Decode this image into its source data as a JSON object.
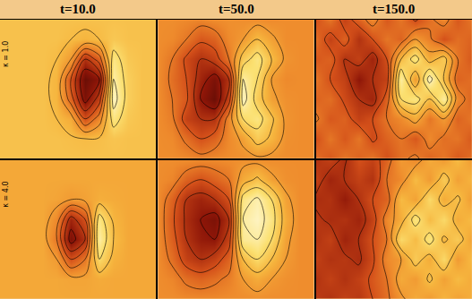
{
  "chart_data": {
    "type": "contour",
    "columns": [
      "t=10.0",
      "t=50.0",
      "t=150.0"
    ],
    "rows": [
      "κ = 1.0",
      "κ = 4.0"
    ],
    "zlim": [
      0,
      1
    ],
    "tick_labels": false,
    "cells": [
      [
        [
          [
            0.72,
            0.72,
            0.72,
            0.72,
            0.72,
            0.72,
            0.72,
            0.72,
            0.72,
            0.72,
            0.72,
            0.72
          ],
          [
            0.72,
            0.72,
            0.72,
            0.72,
            0.72,
            0.7,
            0.68,
            0.7,
            0.74,
            0.72,
            0.72,
            0.72
          ],
          [
            0.72,
            0.72,
            0.72,
            0.72,
            0.7,
            0.6,
            0.3,
            0.45,
            0.85,
            0.74,
            0.72,
            0.72
          ],
          [
            0.72,
            0.72,
            0.72,
            0.72,
            0.68,
            0.4,
            0.1,
            0.2,
            0.9,
            0.76,
            0.72,
            0.72
          ],
          [
            0.72,
            0.72,
            0.72,
            0.72,
            0.68,
            0.45,
            0.15,
            0.35,
            0.95,
            0.76,
            0.72,
            0.72
          ],
          [
            0.72,
            0.72,
            0.72,
            0.72,
            0.7,
            0.65,
            0.4,
            0.55,
            0.85,
            0.74,
            0.72,
            0.72
          ],
          [
            0.72,
            0.72,
            0.72,
            0.72,
            0.72,
            0.71,
            0.7,
            0.71,
            0.73,
            0.72,
            0.72,
            0.72
          ],
          [
            0.72,
            0.72,
            0.72,
            0.72,
            0.72,
            0.72,
            0.72,
            0.72,
            0.72,
            0.72,
            0.72,
            0.72
          ]
        ],
        [
          [
            0.56,
            0.56,
            0.55,
            0.54,
            0.56,
            0.57,
            0.56,
            0.56,
            0.55,
            0.56,
            0.56,
            0.56
          ],
          [
            0.56,
            0.55,
            0.5,
            0.42,
            0.45,
            0.55,
            0.6,
            0.7,
            0.62,
            0.56,
            0.56,
            0.56
          ],
          [
            0.56,
            0.5,
            0.38,
            0.3,
            0.35,
            0.5,
            0.75,
            0.85,
            0.7,
            0.58,
            0.56,
            0.56
          ],
          [
            0.56,
            0.48,
            0.4,
            0.25,
            0.15,
            0.3,
            0.9,
            0.8,
            0.6,
            0.55,
            0.56,
            0.56
          ],
          [
            0.56,
            0.5,
            0.42,
            0.2,
            0.1,
            0.35,
            0.95,
            0.75,
            0.62,
            0.57,
            0.56,
            0.56
          ],
          [
            0.56,
            0.52,
            0.35,
            0.3,
            0.3,
            0.55,
            0.8,
            0.85,
            0.72,
            0.58,
            0.56,
            0.56
          ],
          [
            0.56,
            0.55,
            0.48,
            0.4,
            0.45,
            0.55,
            0.62,
            0.75,
            0.68,
            0.57,
            0.56,
            0.56
          ],
          [
            0.56,
            0.56,
            0.55,
            0.53,
            0.55,
            0.56,
            0.57,
            0.58,
            0.57,
            0.56,
            0.56,
            0.56
          ]
        ],
        [
          [
            0.4,
            0.5,
            0.35,
            0.45,
            0.55,
            0.42,
            0.5,
            0.38,
            0.48,
            0.55,
            0.42,
            0.5
          ],
          [
            0.48,
            0.35,
            0.45,
            0.3,
            0.4,
            0.5,
            0.45,
            0.6,
            0.52,
            0.4,
            0.48,
            0.45
          ],
          [
            0.42,
            0.45,
            0.3,
            0.35,
            0.25,
            0.4,
            0.7,
            0.85,
            0.65,
            0.75,
            0.5,
            0.42
          ],
          [
            0.5,
            0.4,
            0.35,
            0.2,
            0.3,
            0.35,
            0.9,
            0.6,
            0.95,
            0.7,
            0.45,
            0.48
          ],
          [
            0.45,
            0.48,
            0.38,
            0.3,
            0.25,
            0.45,
            0.8,
            0.85,
            0.7,
            0.9,
            0.55,
            0.45
          ],
          [
            0.52,
            0.42,
            0.45,
            0.35,
            0.4,
            0.5,
            0.55,
            0.65,
            0.5,
            0.6,
            0.45,
            0.5
          ],
          [
            0.4,
            0.5,
            0.42,
            0.5,
            0.38,
            0.45,
            0.5,
            0.42,
            0.55,
            0.48,
            0.5,
            0.42
          ],
          [
            0.48,
            0.42,
            0.5,
            0.45,
            0.5,
            0.4,
            0.48,
            0.52,
            0.45,
            0.5,
            0.42,
            0.48
          ]
        ]
      ],
      [
        [
          [
            0.64,
            0.64,
            0.64,
            0.64,
            0.64,
            0.64,
            0.64,
            0.64,
            0.64,
            0.64,
            0.64,
            0.64
          ],
          [
            0.64,
            0.64,
            0.64,
            0.64,
            0.64,
            0.64,
            0.64,
            0.64,
            0.64,
            0.64,
            0.64,
            0.64
          ],
          [
            0.64,
            0.64,
            0.64,
            0.64,
            0.63,
            0.6,
            0.62,
            0.66,
            0.65,
            0.64,
            0.64,
            0.64
          ],
          [
            0.64,
            0.64,
            0.64,
            0.64,
            0.55,
            0.25,
            0.4,
            0.85,
            0.68,
            0.64,
            0.64,
            0.64
          ],
          [
            0.64,
            0.64,
            0.64,
            0.64,
            0.5,
            0.15,
            0.3,
            0.9,
            0.7,
            0.64,
            0.64,
            0.64
          ],
          [
            0.64,
            0.64,
            0.64,
            0.64,
            0.6,
            0.4,
            0.5,
            0.8,
            0.67,
            0.64,
            0.64,
            0.64
          ],
          [
            0.64,
            0.64,
            0.64,
            0.64,
            0.64,
            0.63,
            0.63,
            0.65,
            0.64,
            0.64,
            0.64,
            0.64
          ],
          [
            0.64,
            0.64,
            0.64,
            0.64,
            0.64,
            0.64,
            0.64,
            0.64,
            0.64,
            0.64,
            0.64,
            0.64
          ]
        ],
        [
          [
            0.56,
            0.56,
            0.56,
            0.55,
            0.55,
            0.56,
            0.57,
            0.57,
            0.56,
            0.56,
            0.56,
            0.56
          ],
          [
            0.56,
            0.54,
            0.45,
            0.4,
            0.45,
            0.5,
            0.65,
            0.72,
            0.62,
            0.57,
            0.56,
            0.56
          ],
          [
            0.56,
            0.45,
            0.3,
            0.25,
            0.3,
            0.4,
            0.85,
            0.92,
            0.8,
            0.62,
            0.56,
            0.56
          ],
          [
            0.56,
            0.42,
            0.28,
            0.2,
            0.15,
            0.3,
            0.9,
            0.95,
            0.85,
            0.65,
            0.56,
            0.56
          ],
          [
            0.56,
            0.44,
            0.3,
            0.22,
            0.2,
            0.35,
            0.88,
            0.9,
            0.8,
            0.62,
            0.56,
            0.56
          ],
          [
            0.56,
            0.48,
            0.35,
            0.3,
            0.35,
            0.45,
            0.7,
            0.8,
            0.7,
            0.6,
            0.56,
            0.56
          ],
          [
            0.56,
            0.54,
            0.48,
            0.45,
            0.48,
            0.52,
            0.6,
            0.65,
            0.6,
            0.57,
            0.56,
            0.56
          ],
          [
            0.56,
            0.56,
            0.55,
            0.55,
            0.55,
            0.56,
            0.56,
            0.57,
            0.56,
            0.56,
            0.56,
            0.56
          ]
        ],
        [
          [
            0.3,
            0.35,
            0.28,
            0.4,
            0.35,
            0.45,
            0.6,
            0.55,
            0.65,
            0.6,
            0.7,
            0.6
          ],
          [
            0.35,
            0.25,
            0.3,
            0.35,
            0.3,
            0.5,
            0.55,
            0.7,
            0.6,
            0.75,
            0.62,
            0.68
          ],
          [
            0.28,
            0.3,
            0.22,
            0.3,
            0.4,
            0.45,
            0.7,
            0.62,
            0.8,
            0.65,
            0.72,
            0.6
          ],
          [
            0.32,
            0.28,
            0.3,
            0.25,
            0.35,
            0.55,
            0.65,
            0.85,
            0.7,
            0.8,
            0.65,
            0.7
          ],
          [
            0.3,
            0.35,
            0.25,
            0.3,
            0.4,
            0.5,
            0.8,
            0.7,
            0.85,
            0.68,
            0.75,
            0.62
          ],
          [
            0.35,
            0.3,
            0.32,
            0.28,
            0.38,
            0.55,
            0.6,
            0.75,
            0.65,
            0.8,
            0.6,
            0.7
          ],
          [
            0.3,
            0.35,
            0.3,
            0.35,
            0.42,
            0.5,
            0.65,
            0.6,
            0.72,
            0.62,
            0.7,
            0.65
          ],
          [
            0.33,
            0.3,
            0.35,
            0.32,
            0.4,
            0.48,
            0.58,
            0.65,
            0.6,
            0.68,
            0.62,
            0.66
          ]
        ]
      ]
    ]
  }
}
